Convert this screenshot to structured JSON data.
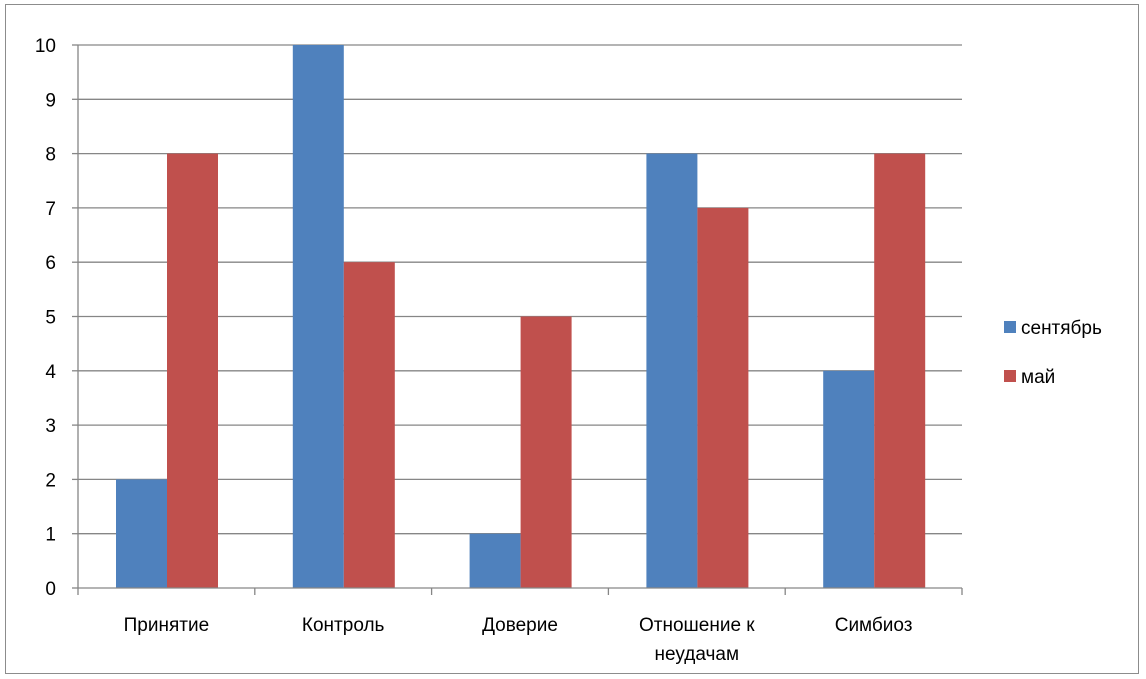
{
  "chart_data": {
    "type": "bar",
    "categories": [
      [
        "Принятие"
      ],
      [
        "Контроль"
      ],
      [
        "Доверие"
      ],
      [
        "Отношение к",
        "неудачам"
      ],
      [
        "Симбиоз"
      ]
    ],
    "series": [
      {
        "name": "сентябрь",
        "color": "#4F81BD",
        "values": [
          2,
          10,
          1,
          8,
          4
        ]
      },
      {
        "name": "май",
        "color": "#C0504D",
        "values": [
          8,
          6,
          5,
          7,
          8
        ]
      }
    ],
    "ylim": [
      0,
      10
    ],
    "yticks": [
      "0",
      "1",
      "2",
      "3",
      "4",
      "5",
      "6",
      "7",
      "8",
      "9",
      "10"
    ],
    "grid": true,
    "legend_position": "right",
    "title": "",
    "xlabel": "",
    "ylabel": ""
  }
}
